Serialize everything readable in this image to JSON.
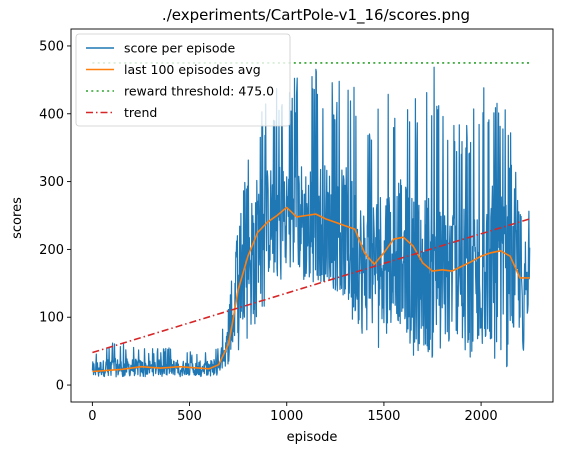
{
  "chart_data": {
    "type": "line",
    "title": "./experiments/CartPole-v1_16/scores.png",
    "xlabel": "episode",
    "ylabel": "scores",
    "xlim": [
      -110,
      2370
    ],
    "ylim": [
      -25,
      525
    ],
    "xticks": [
      0,
      500,
      1000,
      1500,
      2000
    ],
    "yticks": [
      0,
      100,
      200,
      300,
      400,
      500
    ],
    "grid": false,
    "legend_position": "top-left",
    "series": [
      {
        "name": "score per episode",
        "color": "#1f77b4",
        "style": "solid",
        "envelope": {
          "x": [
            0,
            100,
            200,
            300,
            400,
            500,
            600,
            650,
            700,
            750,
            800,
            850,
            900,
            950,
            1000,
            1050,
            1100,
            1150,
            1200,
            1250,
            1300,
            1350,
            1400,
            1450,
            1500,
            1550,
            1600,
            1650,
            1700,
            1750,
            1800,
            1850,
            1900,
            1950,
            2000,
            2050,
            2100,
            2150,
            2200,
            2250
          ],
          "low": [
            12,
            12,
            13,
            12,
            13,
            12,
            12,
            12,
            15,
            30,
            60,
            100,
            120,
            140,
            150,
            160,
            150,
            140,
            150,
            140,
            130,
            80,
            40,
            30,
            60,
            100,
            80,
            40,
            30,
            20,
            50,
            60,
            40,
            30,
            60,
            40,
            30,
            10,
            20,
            50
          ],
          "high": [
            45,
            65,
            60,
            55,
            55,
            50,
            50,
            60,
            120,
            240,
            330,
            400,
            420,
            440,
            450,
            460,
            480,
            470,
            470,
            440,
            490,
            450,
            380,
            400,
            420,
            440,
            500,
            420,
            430,
            500,
            400,
            430,
            380,
            410,
            440,
            470,
            430,
            380,
            280,
            270
          ],
          "mid": [
            25,
            25,
            26,
            25,
            27,
            25,
            25,
            30,
            60,
            130,
            190,
            230,
            240,
            250,
            260,
            250,
            240,
            245,
            240,
            230,
            225,
            200,
            170,
            180,
            200,
            210,
            190,
            175,
            170,
            165,
            160,
            175,
            165,
            160,
            170,
            180,
            170,
            160,
            150,
            170
          ]
        }
      },
      {
        "name": "last 100 episodes avg",
        "color": "#ff7f0e",
        "style": "solid",
        "x": [
          0,
          50,
          100,
          150,
          200,
          250,
          300,
          350,
          400,
          450,
          500,
          550,
          600,
          650,
          700,
          720,
          750,
          800,
          850,
          900,
          950,
          1000,
          1050,
          1100,
          1150,
          1200,
          1250,
          1300,
          1350,
          1400,
          1450,
          1500,
          1550,
          1600,
          1650,
          1700,
          1750,
          1800,
          1850,
          1900,
          1950,
          2000,
          2050,
          2100,
          2150,
          2200,
          2250
        ],
        "y": [
          20,
          21,
          22,
          23,
          25,
          27,
          26,
          25,
          26,
          27,
          26,
          25,
          24,
          30,
          60,
          90,
          140,
          190,
          225,
          240,
          250,
          262,
          248,
          250,
          252,
          245,
          240,
          235,
          230,
          195,
          178,
          195,
          215,
          218,
          205,
          180,
          168,
          170,
          168,
          175,
          182,
          190,
          195,
          198,
          190,
          158,
          158
        ]
      },
      {
        "name": "reward threshold: 475.0",
        "color": "#2ca02c",
        "style": "dotted",
        "x": [
          0,
          2250
        ],
        "y": [
          475,
          475
        ]
      },
      {
        "name": "trend",
        "color": "#d62728",
        "style": "dashdot",
        "x": [
          0,
          2250
        ],
        "y": [
          48,
          245
        ]
      }
    ]
  }
}
